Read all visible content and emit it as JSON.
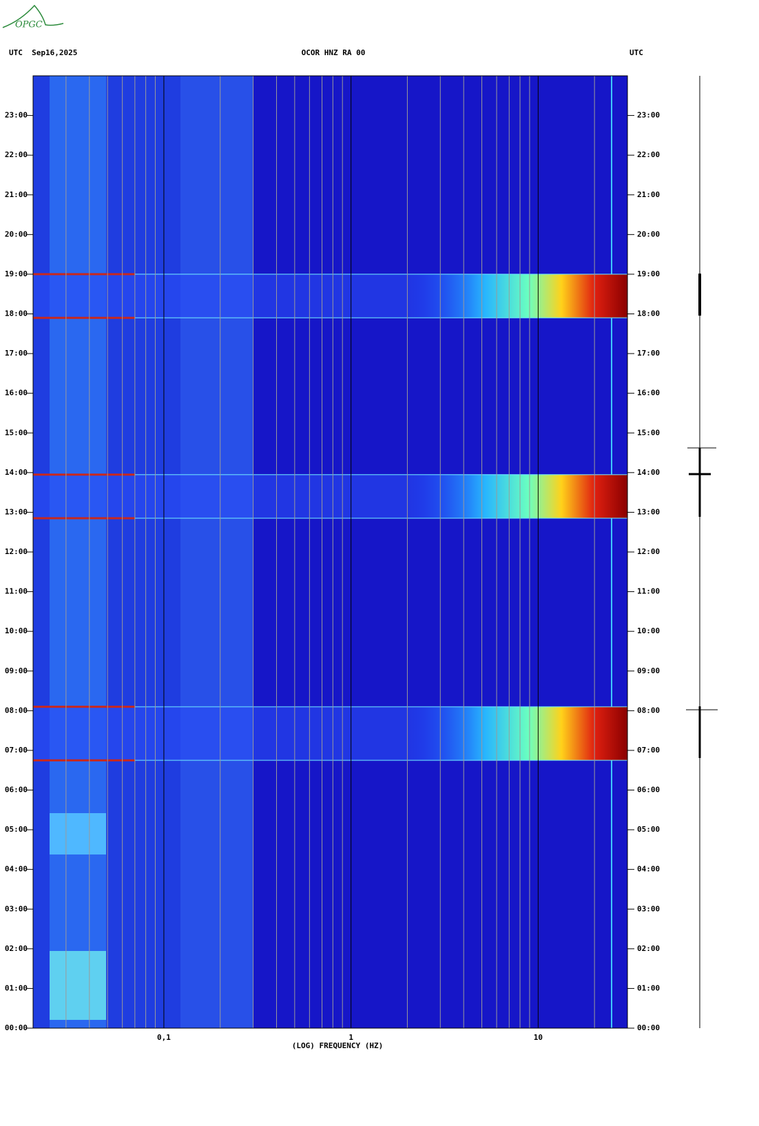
{
  "chart_data": {
    "type": "spectrogram",
    "logo": "OPGC",
    "left_header": "UTC  Sep16,2025",
    "title": "OCOR HNZ RA 00",
    "right_header": "UTC",
    "xlabel": "(LOG) FREQUENCY (HZ)",
    "xscale": "log",
    "xlim": [
      0.02,
      30
    ],
    "xticks": [
      {
        "value": 0.1,
        "label": "0,1"
      },
      1,
      10
    ],
    "x_minor_ticks": [
      0.03,
      0.04,
      0.05,
      0.06,
      0.07,
      0.08,
      0.09,
      0.2,
      0.3,
      0.4,
      0.5,
      0.6,
      0.7,
      0.8,
      0.9,
      2,
      3,
      4,
      5,
      6,
      7,
      8,
      9,
      20,
      30
    ],
    "ylim": [
      0,
      24
    ],
    "yticks": [
      {
        "value": 0,
        "label": "00:00"
      },
      {
        "value": 1,
        "label": "01:00"
      },
      {
        "value": 2,
        "label": "02:00"
      },
      {
        "value": 3,
        "label": "03:00"
      },
      {
        "value": 4,
        "label": "04:00"
      },
      {
        "value": 5,
        "label": "05:00"
      },
      {
        "value": 6,
        "label": "06:00"
      },
      {
        "value": 7,
        "label": "07:00"
      },
      {
        "value": 8,
        "label": "08:00"
      },
      {
        "value": 9,
        "label": "09:00"
      },
      {
        "value": 10,
        "label": "10:00"
      },
      {
        "value": 11,
        "label": "11:00"
      },
      {
        "value": 12,
        "label": "12:00"
      },
      {
        "value": 13,
        "label": "13:00"
      },
      {
        "value": 14,
        "label": "14:00"
      },
      {
        "value": 15,
        "label": "15:00"
      },
      {
        "value": 16,
        "label": "16:00"
      },
      {
        "value": 17,
        "label": "17:00"
      },
      {
        "value": 18,
        "label": "18:00"
      },
      {
        "value": 19,
        "label": "19:00"
      },
      {
        "value": 20,
        "label": "20:00"
      },
      {
        "value": 21,
        "label": "21:00"
      },
      {
        "value": 22,
        "label": "22:00"
      },
      {
        "value": 23,
        "label": "23:00"
      }
    ],
    "events": [
      {
        "start": 17.9,
        "end": 19.0
      },
      {
        "start": 12.85,
        "end": 13.95
      },
      {
        "start": 6.75,
        "end": 8.1
      }
    ]
  }
}
